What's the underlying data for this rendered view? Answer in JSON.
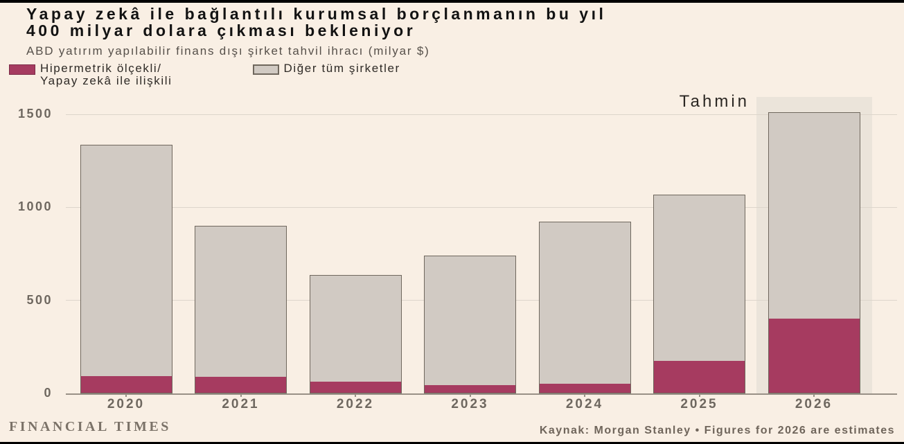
{
  "colors": {
    "background": "#f9efe4",
    "ai_red": "#a63b60",
    "other_gray": "#d1cac3",
    "bar_border": "#6f675d",
    "forecast_band": "#ebe4da",
    "gridline": "#ddd5cb",
    "axis_line": "#989086",
    "axis_text": "#6e675f",
    "title_text": "#121212"
  },
  "header": {
    "title_line1": "Yapay zekâ ile bağlantılı kurumsal borçlanmanın bu yıl",
    "title_line2": "400 milyar dolara çıkması bekleniyor",
    "subtitle": "ABD yatırım yapılabilir finans dışı şirket tahvil ihracı (milyar $)"
  },
  "legend": {
    "ai": {
      "label_line1": "Hipermetrik ölçekli/",
      "label_line2": "Yapay zekâ ile ilişkili"
    },
    "other": {
      "label": "Diğer tüm şirketler"
    }
  },
  "forecast_label": "Tahmin",
  "footer": {
    "brand": "FINANCIAL TIMES",
    "source": "Kaynak: Morgan Stanley • Figures for 2026 are estimates"
  },
  "chart_data": {
    "type": "bar",
    "stacked": true,
    "title": "Yapay zekâ ile bağlantılı kurumsal borçlanmanın bu yıl 400 milyar dolara çıkması bekleniyor",
    "subtitle": "ABD yatırım yapılabilir finans dışı şirket tahvil ihracı (milyar $)",
    "unit": "milyar $",
    "categories": [
      "2020",
      "2021",
      "2022",
      "2023",
      "2024",
      "2025",
      "2026"
    ],
    "series": [
      {
        "name": "Hipermetrik ölçekli/Yapay zekâ ile ilişkili",
        "color": "#a63b60",
        "values": [
          90,
          85,
          60,
          40,
          50,
          170,
          400
        ]
      },
      {
        "name": "Diğer tüm şirketler",
        "color": "#d1cac3",
        "values": [
          1245,
          815,
          575,
          700,
          875,
          900,
          1110
        ]
      }
    ],
    "totals": [
      1335,
      900,
      635,
      740,
      925,
      1070,
      1510
    ],
    "yticks": [
      0,
      500,
      1000,
      1500
    ],
    "ylim": [
      0,
      1627
    ],
    "grid": true,
    "legend_position": "top-left",
    "forecast": {
      "category": "2026",
      "label": "Tahmin"
    },
    "source": "Morgan Stanley"
  }
}
